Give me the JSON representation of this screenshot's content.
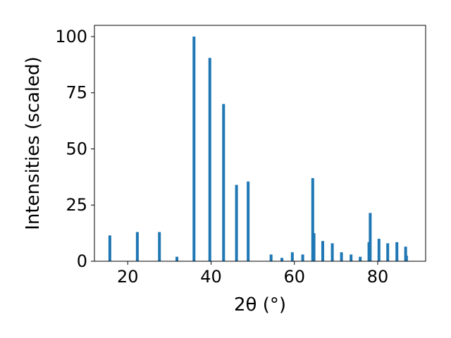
{
  "chart_data": {
    "type": "bar",
    "xlabel": "2θ (°)",
    "ylabel": "Intensities (scaled)",
    "xlim": [
      12,
      91.5
    ],
    "ylim": [
      0,
      105
    ],
    "x_ticks": [
      20,
      40,
      60,
      80
    ],
    "y_ticks": [
      0,
      25,
      50,
      75,
      100
    ],
    "bar_color": "#1f77b4",
    "grid": false,
    "bars": [
      {
        "x": 15.7,
        "value": 11.5
      },
      {
        "x": 22.3,
        "value": 13
      },
      {
        "x": 27.6,
        "value": 13
      },
      {
        "x": 31.8,
        "value": 2
      },
      {
        "x": 35.9,
        "value": 100
      },
      {
        "x": 39.7,
        "value": 90.5
      },
      {
        "x": 43.0,
        "value": 70
      },
      {
        "x": 46.1,
        "value": 34
      },
      {
        "x": 48.9,
        "value": 35.5
      },
      {
        "x": 54.4,
        "value": 3
      },
      {
        "x": 57.0,
        "value": 1.5
      },
      {
        "x": 59.5,
        "value": 4
      },
      {
        "x": 62.0,
        "value": 3
      },
      {
        "x": 64.4,
        "value": 37
      },
      {
        "x": 64.7,
        "value": 12.5
      },
      {
        "x": 66.8,
        "value": 9
      },
      {
        "x": 69.1,
        "value": 8
      },
      {
        "x": 71.3,
        "value": 4
      },
      {
        "x": 73.6,
        "value": 3
      },
      {
        "x": 75.8,
        "value": 2
      },
      {
        "x": 77.9,
        "value": 8.5
      },
      {
        "x": 78.2,
        "value": 21.5
      },
      {
        "x": 80.3,
        "value": 10
      },
      {
        "x": 82.4,
        "value": 8
      },
      {
        "x": 84.6,
        "value": 8.5
      },
      {
        "x": 86.7,
        "value": 6.5
      },
      {
        "x": 86.9,
        "value": 2.5
      }
    ]
  }
}
